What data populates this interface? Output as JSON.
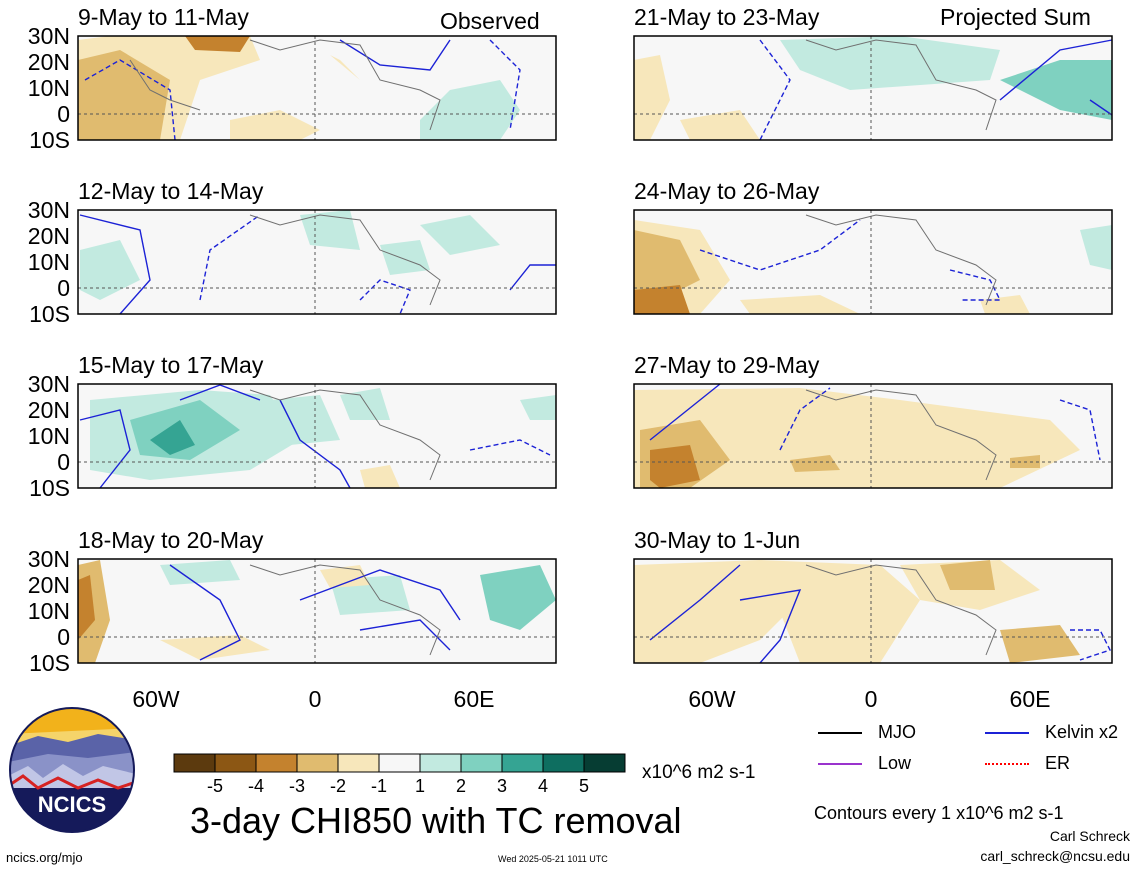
{
  "left_column_label": "Observed",
  "right_column_label": "Projected Sum",
  "lat_labels": [
    "30N",
    "20N",
    "10N",
    "0",
    "10S"
  ],
  "lon_labels": [
    "60W",
    "0",
    "60E"
  ],
  "panels": [
    {
      "title": "9-May to 11-May"
    },
    {
      "title": "12-May to 14-May"
    },
    {
      "title": "15-May to 17-May"
    },
    {
      "title": "18-May to 20-May"
    },
    {
      "title": "21-May to 23-May"
    },
    {
      "title": "24-May to 26-May"
    },
    {
      "title": "27-May to 29-May"
    },
    {
      "title": "30-May to 1-Jun"
    }
  ],
  "colorbar": {
    "ticks": [
      "-5",
      "-4",
      "-3",
      "-2",
      "-1",
      "1",
      "2",
      "3",
      "4",
      "5"
    ],
    "colors": [
      "#5c3a0e",
      "#8c5714",
      "#c4822e",
      "#e0bb6f",
      "#f7e7bb",
      "#f7f7f7",
      "#c2eae0",
      "#7fd1c0",
      "#35a493",
      "#0e6e60",
      "#063d33"
    ],
    "units": "x10^6 m2 s-1"
  },
  "title": "3-day CHI850 with TC removal",
  "legend": {
    "items": [
      {
        "label": "MJO",
        "color": "#000000",
        "style": "solid"
      },
      {
        "label": "Kelvin x2",
        "color": "#1c22d6",
        "style": "solid"
      },
      {
        "label": "Low",
        "color": "#9a32cd",
        "style": "solid"
      },
      {
        "label": "ER",
        "color": "#ff0000",
        "style": "dotted"
      }
    ],
    "contour_note": "Contours every 1 x10^6 m2 s-1"
  },
  "logo": {
    "text": "NCICS"
  },
  "footer": {
    "url": "ncics.org/mjo",
    "timestamp": "Wed 2025-05-21 1011 UTC",
    "author": "Carl Schreck",
    "email": "carl_schreck@ncsu.edu"
  }
}
